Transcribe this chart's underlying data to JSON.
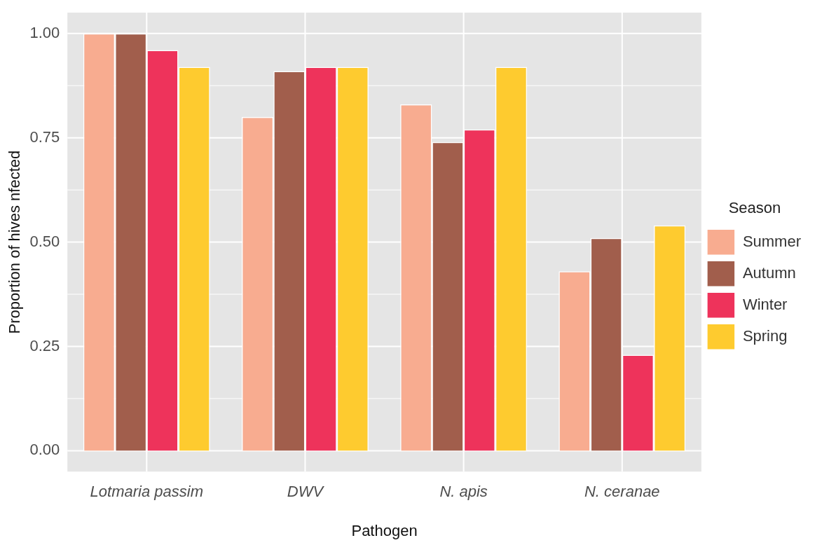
{
  "chart_data": {
    "type": "bar",
    "xlabel": "Pathogen",
    "ylabel": "Proportion of hives nfected",
    "legend_title": "Season",
    "categories": [
      "Lotmaria passim",
      "DWV",
      "N. apis",
      "N. ceranae"
    ],
    "series": [
      {
        "name": "Summer",
        "color": "#f8ac90",
        "values": [
          1.0,
          0.8,
          0.83,
          0.43
        ]
      },
      {
        "name": "Autumn",
        "color": "#a15e4c",
        "values": [
          1.0,
          0.91,
          0.74,
          0.51
        ]
      },
      {
        "name": "Winter",
        "color": "#ee335b",
        "values": [
          0.96,
          0.92,
          0.77,
          0.23
        ]
      },
      {
        "name": "Spring",
        "color": "#fecb2f",
        "values": [
          0.92,
          0.92,
          0.92,
          0.54
        ]
      }
    ],
    "ylim": [
      -0.05,
      1.05
    ],
    "yticks": [
      {
        "value": 0,
        "label": "0.00"
      },
      {
        "value": 0.125,
        "label": null
      },
      {
        "value": 0.25,
        "label": "0.25"
      },
      {
        "value": 0.375,
        "label": null
      },
      {
        "value": 0.5,
        "label": "0.50"
      },
      {
        "value": 0.625,
        "label": null
      },
      {
        "value": 0.75,
        "label": "0.75"
      },
      {
        "value": 0.875,
        "label": null
      },
      {
        "value": 1,
        "label": "1.00"
      }
    ],
    "grid": true,
    "legend": "right"
  }
}
